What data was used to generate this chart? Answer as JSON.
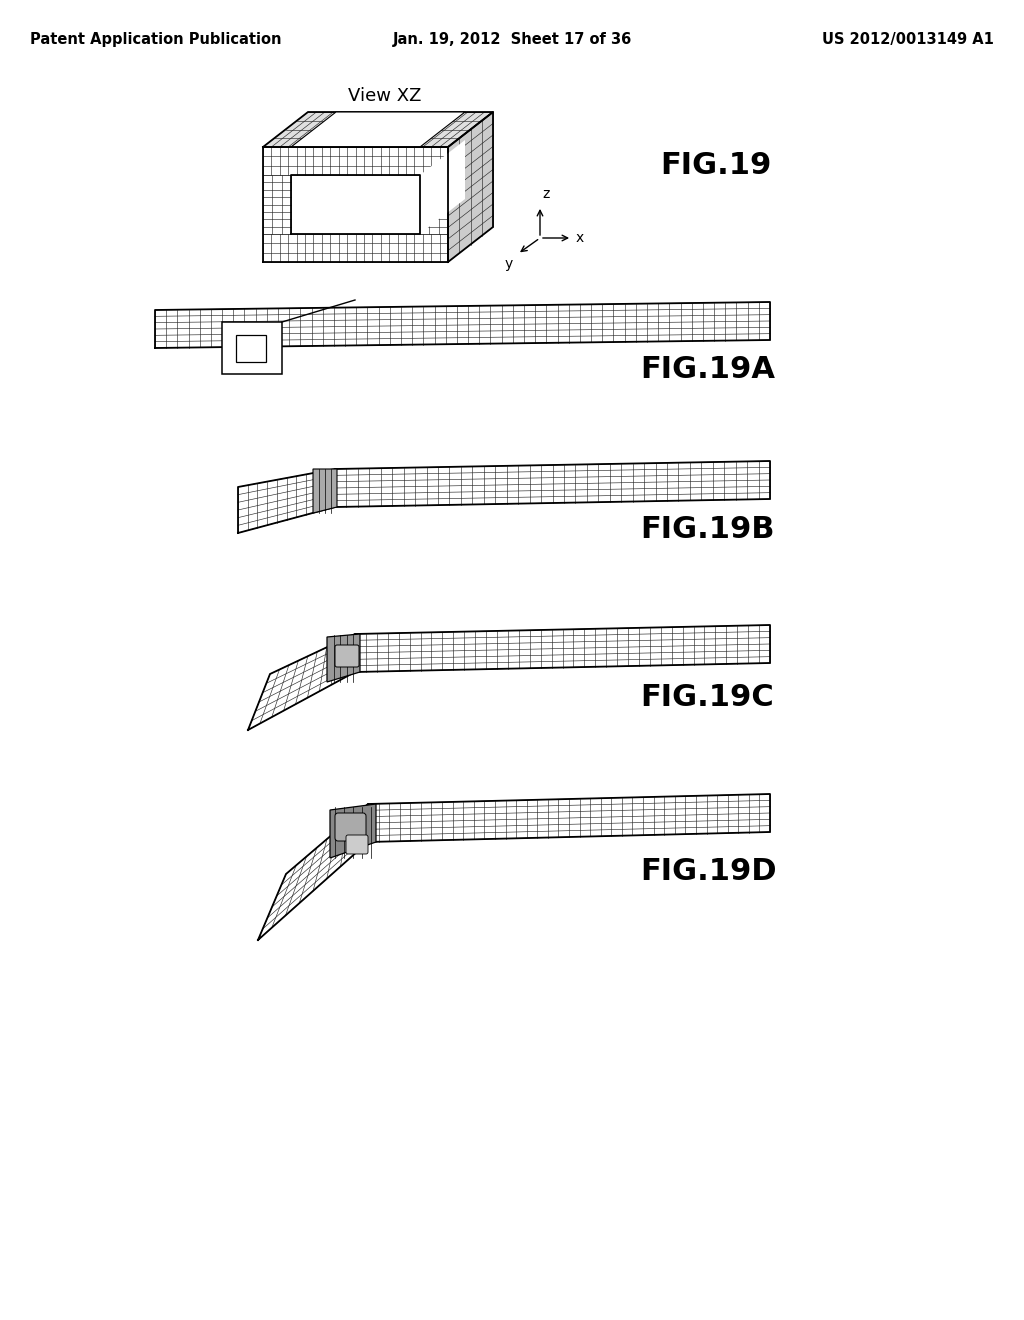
{
  "background_color": "#ffffff",
  "header_left": "Patent Application Publication",
  "header_center": "Jan. 19, 2012  Sheet 17 of 36",
  "header_right": "US 2012/0013149 A1",
  "header_fontsize": 10.5,
  "view_label": "View XZ",
  "fig19_label": "FIG.19",
  "fig19a_label": "FIG.19A",
  "fig19b_label": "FIG.19B",
  "fig19c_label": "FIG.19C",
  "fig19d_label": "FIG.19D",
  "label_fontsize": 22
}
